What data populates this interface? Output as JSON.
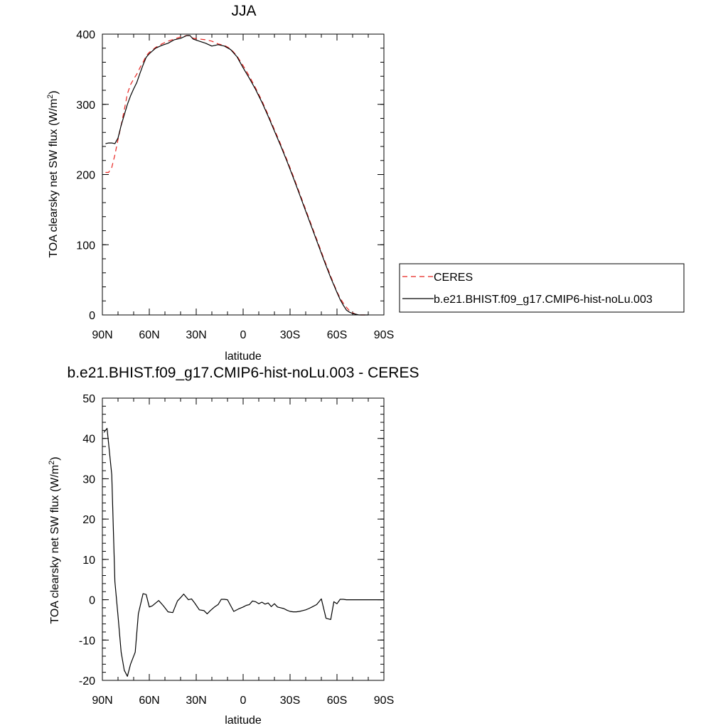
{
  "chart_data": [
    {
      "type": "line",
      "title": "JJA",
      "xlabel": "latitude",
      "ylabel": "TOA clearsky net SW flux (W/m²)",
      "ylabel_main": "TOA clearsky net SW flux (W/m",
      "ylabel_sup": "2",
      "ylabel_close": ")",
      "xlim": [
        90,
        -90
      ],
      "ylim": [
        0,
        400
      ],
      "x_ticks": [
        {
          "value": 90,
          "label": "90N"
        },
        {
          "value": 60,
          "label": "60N"
        },
        {
          "value": 30,
          "label": "30N"
        },
        {
          "value": 0,
          "label": "0"
        },
        {
          "value": -30,
          "label": "30S"
        },
        {
          "value": -60,
          "label": "60S"
        },
        {
          "value": -90,
          "label": "90S"
        }
      ],
      "y_ticks": [
        {
          "value": 0,
          "label": "0"
        },
        {
          "value": 100,
          "label": "100"
        },
        {
          "value": 200,
          "label": "200"
        },
        {
          "value": 300,
          "label": "300"
        },
        {
          "value": 400,
          "label": "400"
        }
      ],
      "grid": false,
      "legend_position": "right",
      "series": [
        {
          "name": "CERES",
          "color": "#e8231f",
          "dash": "dashed",
          "x": [
            88,
            86,
            84,
            82,
            80,
            78,
            76,
            74,
            72,
            70,
            68,
            66,
            64,
            62,
            60,
            56,
            52,
            48,
            44,
            40,
            36,
            34,
            32,
            28,
            24,
            20,
            16,
            12,
            8,
            4,
            0,
            -4,
            -8,
            -12,
            -16,
            -20,
            -24,
            -28,
            -32,
            -36,
            -40,
            -44,
            -48,
            -52,
            -56,
            -60,
            -62,
            -64,
            -66,
            -68,
            -70,
            -72,
            -74,
            -76,
            -78,
            -80
          ],
          "values": [
            203,
            203,
            210,
            228,
            250,
            270,
            292,
            315,
            328,
            336,
            343,
            352,
            360,
            369,
            374,
            381,
            386,
            390,
            393,
            396,
            398,
            398,
            394,
            393,
            392,
            390,
            386,
            384,
            379,
            369,
            355,
            340,
            323,
            305,
            285,
            264,
            243,
            221,
            198,
            174,
            150,
            126,
            102,
            78,
            55,
            33,
            24,
            17,
            11,
            6,
            3,
            1,
            0,
            0,
            0,
            0
          ]
        },
        {
          "name": "b.e21.BHIST.f09_g17.CMIP6-hist-noLu.003",
          "color": "#000000",
          "dash": "solid",
          "x": [
            88,
            86,
            84,
            82,
            80,
            78,
            76,
            74,
            72,
            70,
            68,
            66,
            64,
            62,
            60,
            56,
            52,
            48,
            44,
            40,
            36,
            34,
            32,
            28,
            24,
            20,
            16,
            12,
            8,
            4,
            0,
            -4,
            -8,
            -12,
            -16,
            -20,
            -24,
            -28,
            -32,
            -36,
            -40,
            -44,
            -48,
            -52,
            -56,
            -60,
            -62,
            -64,
            -66,
            -68,
            -70,
            -72,
            -74,
            -76,
            -78,
            -80
          ],
          "values": [
            244,
            245,
            245,
            244,
            252,
            270,
            285,
            300,
            312,
            322,
            331,
            344,
            356,
            367,
            372,
            380,
            384,
            387,
            392,
            394,
            398,
            398,
            393,
            390,
            387,
            383,
            385,
            383,
            378,
            368,
            352,
            337,
            321,
            303,
            283,
            262,
            241,
            219,
            196,
            172,
            148,
            124,
            100,
            76,
            53,
            32,
            22,
            14,
            7,
            4,
            2,
            1,
            0,
            0,
            0,
            0
          ]
        }
      ]
    },
    {
      "type": "line",
      "title": "b.e21.BHIST.f09_g17.CMIP6-hist-noLu.003 - CERES",
      "xlabel": "latitude",
      "ylabel": "TOA clearsky net SW flux (W/m²)",
      "ylabel_main": "TOA clearsky net SW flux (W/m",
      "ylabel_sup": "2",
      "ylabel_close": ")",
      "xlim": [
        90,
        -90
      ],
      "ylim": [
        -20,
        50
      ],
      "x_ticks": [
        {
          "value": 90,
          "label": "90N"
        },
        {
          "value": 60,
          "label": "60N"
        },
        {
          "value": 30,
          "label": "30N"
        },
        {
          "value": 0,
          "label": "0"
        },
        {
          "value": -30,
          "label": "30S"
        },
        {
          "value": -60,
          "label": "60S"
        },
        {
          "value": -90,
          "label": "90S"
        }
      ],
      "y_ticks": [
        {
          "value": -20,
          "label": "-20"
        },
        {
          "value": -10,
          "label": "-10"
        },
        {
          "value": 0,
          "label": "0"
        },
        {
          "value": 10,
          "label": "10"
        },
        {
          "value": 20,
          "label": "20"
        },
        {
          "value": 30,
          "label": "30"
        },
        {
          "value": 40,
          "label": "40"
        },
        {
          "value": 50,
          "label": "50"
        }
      ],
      "grid": false,
      "series": [
        {
          "color": "#000000",
          "dash": "solid",
          "x": [
            89,
            87,
            84,
            82,
            80,
            78,
            76,
            74,
            72,
            69,
            67,
            64,
            62,
            60,
            58,
            54,
            51,
            48,
            45,
            42,
            40,
            38,
            35,
            33,
            31,
            28,
            25,
            23,
            21,
            18,
            16,
            14,
            12,
            10,
            6,
            3,
            0,
            -2,
            -4,
            -6,
            -8,
            -10,
            -12,
            -14,
            -16,
            -18,
            -20,
            -22,
            -24,
            -26,
            -28,
            -30,
            -32,
            -34,
            -36,
            -38,
            -40,
            -42,
            -44,
            -47,
            -50,
            -53,
            -56,
            -58,
            -60,
            -62,
            -64,
            -66,
            -68,
            -70,
            -72,
            -74,
            -78,
            -82,
            -86,
            -90
          ],
          "values": [
            41.5,
            42.5,
            31,
            4.5,
            -4,
            -13,
            -17.5,
            -19,
            -16,
            -13,
            -3.5,
            1.5,
            1.3,
            -1.8,
            -1.5,
            -0.2,
            -1.5,
            -3,
            -3.2,
            -0.3,
            0.5,
            1.4,
            0,
            0.2,
            -0.8,
            -2.5,
            -2.7,
            -3.5,
            -2.7,
            -1.7,
            -1.2,
            0.1,
            0.1,
            0,
            -2.9,
            -2.3,
            -1.8,
            -1.4,
            -1.2,
            -0.3,
            -0.5,
            -1,
            -0.6,
            -1.1,
            -0.8,
            -1.7,
            -1,
            -1.8,
            -2,
            -2.2,
            -2.6,
            -2.9,
            -3,
            -3,
            -2.9,
            -2.7,
            -2.5,
            -2.2,
            -1.8,
            -1.2,
            0.2,
            -4.6,
            -4.9,
            -0.5,
            -1,
            0.1,
            0.1,
            0,
            0,
            0,
            0,
            0,
            0,
            0,
            0,
            0
          ]
        }
      ]
    }
  ]
}
